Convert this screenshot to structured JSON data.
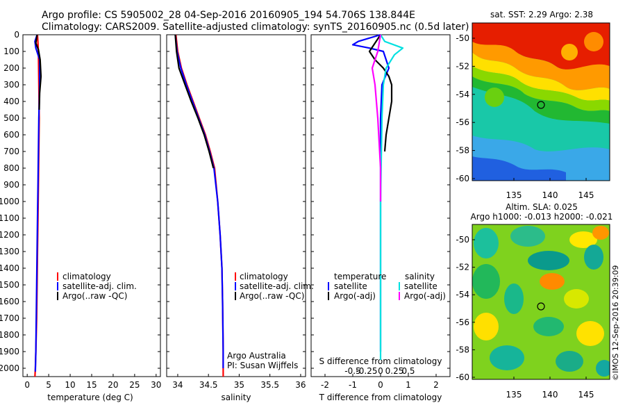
{
  "title": {
    "line1": "Argo profile: CS 5905002_28 04-Sep-2016 20160905_194 54.706S 138.844E",
    "line2": "Climatology: CARS2009. Satellite-adjusted climatology: synTS_20160905.nc (0.5d later)"
  },
  "depth_ticks": [
    0,
    100,
    200,
    300,
    400,
    500,
    600,
    700,
    800,
    900,
    1000,
    1100,
    1200,
    1300,
    1400,
    1500,
    1600,
    1700,
    1800,
    1900,
    2000
  ],
  "colors": {
    "climatology": "#ff0000",
    "satellite": "#0000ff",
    "argo": "#000000",
    "sal_sat": "#00e0e0",
    "sal_argo": "#ff00ff"
  },
  "panels": {
    "temp": {
      "xlabel": "temperature (deg C)",
      "ticks": [
        0,
        5,
        10,
        15,
        20,
        25,
        30
      ],
      "legend": [
        "climatology",
        "satellite-adj. clim.",
        "Argo(..raw -QC)"
      ]
    },
    "sal": {
      "xlabel": "salinity",
      "ticks": [
        "34",
        "34.5",
        "35",
        "35.5",
        "36"
      ],
      "legend": [
        "climatology",
        "satellite-adj. clim.",
        "Argo(..raw -QC)"
      ],
      "credit1": "Argo Australia",
      "credit2": "PI: Susan Wijffels"
    },
    "diff": {
      "xlabel": "T difference from climatology",
      "s_label": "S difference from climatology",
      "t_ticks": [
        "-2",
        "-1",
        "0",
        "1",
        "2"
      ],
      "s_ticks": [
        "-0.5",
        "-0.25",
        "0",
        "0.25",
        "0.5"
      ],
      "legend_temp_head": "temperature",
      "legend_sal_head": "salinity",
      "legend_temp": [
        "satellite",
        "Argo(-adj)"
      ],
      "legend_sal": [
        "satellite",
        "Argo(-adj)"
      ]
    }
  },
  "maps": {
    "sst": {
      "title": "sat. SST: 2.29  Argo: 2.38",
      "lat_ticks": [
        "-50",
        "-52",
        "-54",
        "-56",
        "-58",
        "-60"
      ],
      "lon_ticks": [
        "135",
        "140",
        "145"
      ]
    },
    "sla": {
      "title1": "Altim. SLA: 0.025",
      "title2": "Argo h1000: -0.013 h2000: -0.021",
      "lat_ticks": [
        "-50",
        "-52",
        "-54",
        "-56",
        "-58",
        "-60"
      ],
      "lon_ticks": [
        "135",
        "140",
        "145"
      ]
    }
  },
  "footer": "©IMOS 12-Sep-2016 20:39:09",
  "chart_data": [
    {
      "type": "line",
      "xlabel": "temperature (deg C)",
      "ylabel": "",
      "xlim": [
        -1,
        31
      ],
      "ylim": [
        2050,
        0
      ],
      "series": [
        {
          "name": "climatology",
          "color": "#ff0000",
          "x": [
            2.4,
            2.6,
            2.7,
            2.8,
            2.7,
            2.6,
            2.5,
            2.4,
            2.3,
            2.2,
            2.1,
            2.0,
            1.9,
            1.8
          ],
          "y": [
            0,
            100,
            300,
            500,
            700,
            900,
            1100,
            1300,
            1500,
            1700,
            1800,
            1900,
            2000,
            2050
          ]
        },
        {
          "name": "satellite-adj. clim.",
          "color": "#0000ff",
          "x": [
            2.3,
            1.8,
            2.0,
            2.9,
            2.9,
            2.7,
            2.6,
            2.5,
            2.4,
            2.3,
            2.2,
            2.1,
            2.0,
            1.9
          ],
          "y": [
            0,
            40,
            80,
            150,
            300,
            500,
            700,
            900,
            1100,
            1300,
            1500,
            1700,
            1900,
            2020
          ]
        },
        {
          "name": "Argo(..raw -QC)",
          "color": "#000000",
          "x": [
            2.3,
            2.0,
            2.6,
            3.0,
            3.2,
            2.9,
            2.8
          ],
          "y": [
            0,
            50,
            90,
            150,
            250,
            350,
            450
          ]
        }
      ]
    },
    {
      "type": "line",
      "xlabel": "salinity",
      "ylabel": "",
      "xlim": [
        33.82,
        36.08
      ],
      "ylim": [
        2050,
        0
      ],
      "series": [
        {
          "name": "climatology",
          "color": "#ff0000",
          "x": [
            33.97,
            34.0,
            34.06,
            34.15,
            34.25,
            34.35,
            34.45,
            34.53,
            34.6,
            34.65,
            34.69,
            34.72,
            34.73,
            34.74,
            34.74
          ],
          "y": [
            0,
            100,
            200,
            300,
            400,
            500,
            600,
            700,
            800,
            1000,
            1200,
            1400,
            1600,
            1900,
            2050
          ]
        },
        {
          "name": "satellite-adj. clim.",
          "color": "#0000ff",
          "x": [
            33.96,
            33.99,
            34.05,
            34.14,
            34.24,
            34.34,
            34.44,
            34.52,
            34.59,
            34.65,
            34.69,
            34.72,
            34.73,
            34.74,
            34.74
          ],
          "y": [
            0,
            100,
            200,
            300,
            400,
            500,
            600,
            700,
            800,
            1000,
            1200,
            1400,
            1600,
            1900,
            2000
          ]
        },
        {
          "name": "Argo(..raw -QC)",
          "color": "#000000",
          "x": [
            33.96,
            33.98,
            34.02,
            34.12,
            34.22,
            34.33,
            34.43,
            34.51,
            34.58
          ],
          "y": [
            0,
            100,
            200,
            300,
            400,
            500,
            600,
            700,
            800
          ]
        }
      ]
    },
    {
      "type": "line",
      "xlabel": "T difference from climatology",
      "ylabel": "",
      "xlim": [
        -2.5,
        2.5
      ],
      "ylim": [
        2050,
        0
      ],
      "series": [
        {
          "name": "temperature satellite",
          "color": "#0000ff",
          "x": [
            0,
            -0.8,
            -1.0,
            -0.4,
            0.1,
            0.3,
            0.05,
            0.0,
            0.0,
            0.0
          ],
          "y": [
            0,
            40,
            60,
            80,
            100,
            200,
            300,
            500,
            1000,
            1900
          ]
        },
        {
          "name": "temperature Argo(-adj)",
          "color": "#000000",
          "x": [
            0,
            -0.2,
            -0.4,
            -0.2,
            0.1,
            0.3,
            0.4,
            0.4,
            0.3,
            0.2,
            0.15
          ],
          "y": [
            0,
            50,
            100,
            150,
            200,
            250,
            300,
            400,
            500,
            600,
            700
          ]
        },
        {
          "name": "salinity satellite",
          "color": "#00e0e0",
          "x": [
            0,
            0.15,
            0.8,
            0.5,
            0.2,
            0.1,
            0.05,
            0.0,
            0.0
          ],
          "y": [
            0,
            40,
            80,
            120,
            200,
            300,
            500,
            1000,
            1950
          ]
        },
        {
          "name": "salinity Argo(-adj)",
          "color": "#ff00ff",
          "x": [
            0,
            -0.1,
            -0.3,
            -0.2,
            -0.1,
            0.0,
            0.0
          ],
          "y": [
            0,
            100,
            200,
            300,
            500,
            800,
            1000
          ]
        }
      ]
    }
  ]
}
